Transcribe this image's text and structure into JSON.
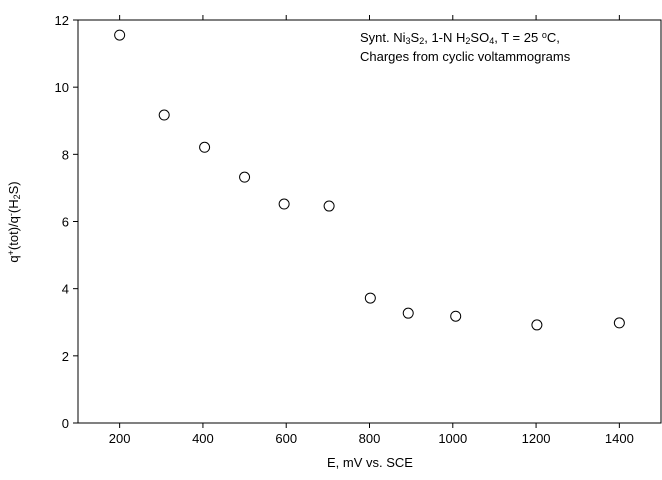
{
  "chart_data": {
    "type": "scatter",
    "x": [
      200,
      307,
      404,
      500,
      595,
      703,
      802,
      893,
      1007,
      1202,
      1400
    ],
    "values": [
      11.55,
      9.17,
      8.21,
      7.32,
      6.52,
      6.46,
      3.72,
      3.27,
      3.18,
      2.92,
      2.98
    ],
    "color": "#000000",
    "xlim": [
      100,
      1500
    ],
    "xticks": [
      200,
      400,
      600,
      800,
      1000,
      1200,
      1400
    ],
    "ylim": [
      0,
      12
    ],
    "yticks": [
      0,
      2,
      4,
      6,
      8,
      10,
      12
    ],
    "x_label": "E, mV vs. SCE",
    "y_label": [
      {
        "text": "q"
      },
      {
        "text": "+",
        "script": "sup"
      },
      {
        "text": "(tot)/q"
      },
      {
        "text": "-",
        "script": "sup"
      },
      {
        "text": "(H"
      },
      {
        "text": "2",
        "script": "sub"
      },
      {
        "text": "S)"
      }
    ],
    "annotation": [
      [
        {
          "text": "Synt. Ni"
        },
        {
          "text": "3",
          "script": "sub"
        },
        {
          "text": "S"
        },
        {
          "text": "2",
          "script": "sub"
        },
        {
          "text": ", 1-N H"
        },
        {
          "text": "2",
          "script": "sub"
        },
        {
          "text": "SO"
        },
        {
          "text": "4",
          "script": "sub"
        },
        {
          "text": ", T = 25 "
        },
        {
          "text": "o",
          "script": "sup"
        },
        {
          "text": "C,"
        }
      ],
      [
        {
          "text": "Charges from cyclic voltammograms"
        }
      ]
    ]
  }
}
